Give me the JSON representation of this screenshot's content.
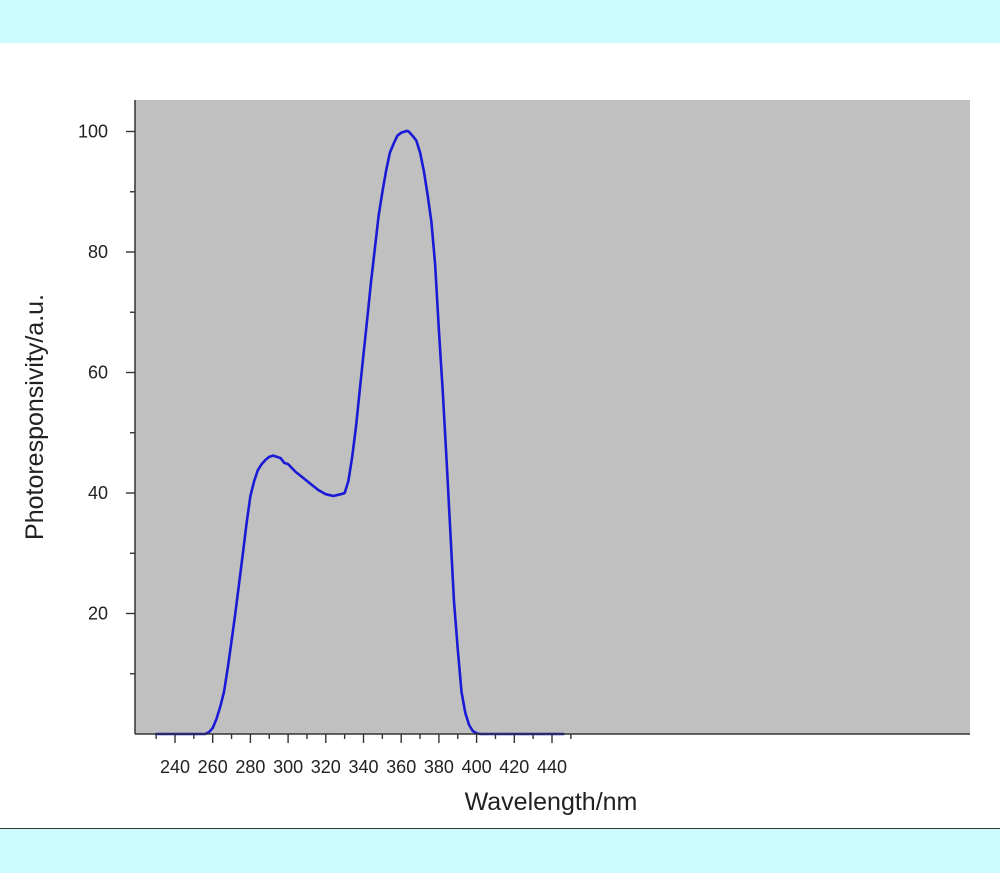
{
  "colors": {
    "page_background": "#ccfcfe",
    "panel_background": "#ffffff",
    "plot_background": "#c0c0c0",
    "series_color": "#1a1ad6",
    "axis_color": "#333333"
  },
  "chart_data": {
    "type": "line",
    "title": "",
    "xlabel": "Wavelength/nm",
    "ylabel": "Photoresponsivity/a.u.",
    "xlim": [
      230,
      450
    ],
    "ylim": [
      0,
      105
    ],
    "x_ticks": [
      240,
      260,
      280,
      300,
      320,
      340,
      360,
      380,
      400,
      420,
      440
    ],
    "y_ticks": [
      20,
      40,
      60,
      80,
      100
    ],
    "grid": false,
    "legend": "none",
    "series": [
      {
        "x": [
          230,
          240,
          250,
          256,
          258,
          260,
          262,
          264,
          266,
          268,
          270,
          272,
          274,
          276,
          278,
          280,
          282,
          284,
          286,
          288,
          290,
          292,
          294,
          296,
          298,
          300,
          304,
          308,
          312,
          316,
          320,
          324,
          328,
          330,
          332,
          334,
          336,
          338,
          340,
          342,
          344,
          346,
          348,
          350,
          352,
          354,
          356,
          358,
          360,
          362,
          363,
          364,
          366,
          368,
          370,
          372,
          374,
          376,
          378,
          380,
          382,
          384,
          386,
          388,
          390,
          392,
          394,
          396,
          398,
          400,
          402,
          404,
          406,
          408,
          420,
          446
        ],
        "y": [
          0,
          0,
          0,
          0,
          0.3,
          1,
          2.5,
          4.5,
          7,
          11,
          15.5,
          20,
          25,
          30,
          35,
          39.5,
          42,
          43.8,
          44.8,
          45.5,
          46,
          46.2,
          46,
          45.8,
          45,
          44.8,
          43.5,
          42.5,
          41.5,
          40.5,
          39.8,
          39.5,
          39.8,
          40,
          42,
          46,
          51,
          57,
          63,
          69,
          75,
          80.5,
          86,
          90,
          93.5,
          96.5,
          98,
          99.3,
          99.8,
          100,
          100.1,
          100,
          99.3,
          98.5,
          96.5,
          93.5,
          89.5,
          85,
          78,
          67,
          57,
          46,
          34,
          22,
          14,
          7,
          3.5,
          1.5,
          0.5,
          0.1,
          0,
          0,
          0,
          0,
          0,
          0
        ]
      }
    ]
  }
}
